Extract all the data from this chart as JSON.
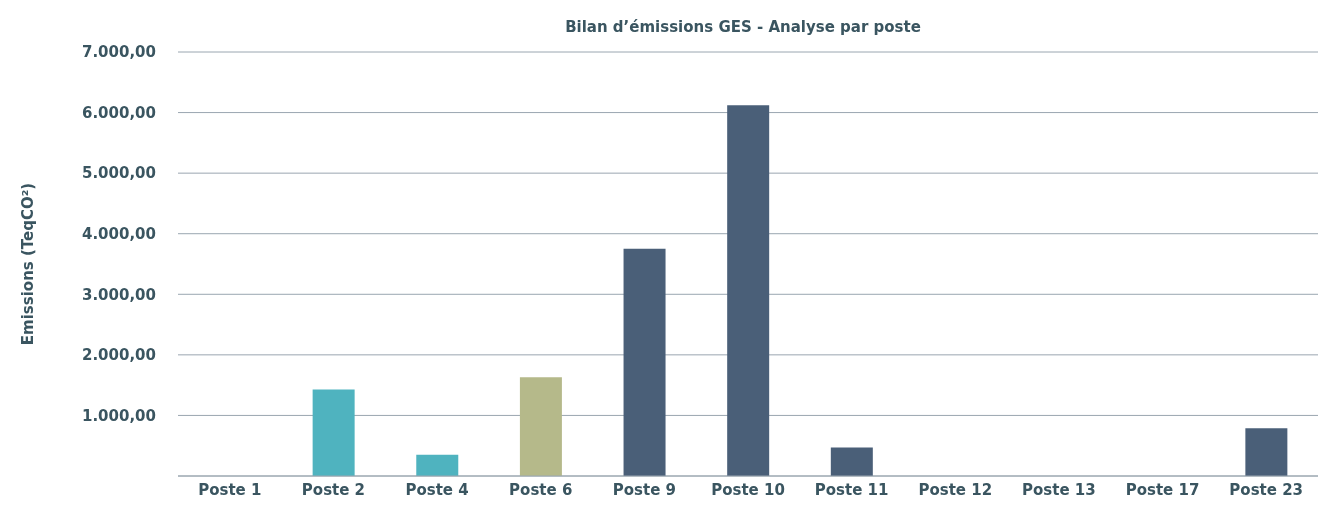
{
  "chart_data": {
    "type": "bar",
    "title": "Bilan d’émissions GES - Analyse par poste",
    "ylabel": "Emissions (TeqCO²)",
    "categories": [
      "Poste 1",
      "Poste 2",
      "Poste 4",
      "Poste 6",
      "Poste 9",
      "Poste 10",
      "Poste 11",
      "Poste 12",
      "Poste 13",
      "Poste 17",
      "Poste 23"
    ],
    "values": [
      0,
      1430,
      350,
      1630,
      3750,
      6120,
      470,
      0,
      0,
      0,
      790
    ],
    "colors": [
      "#4a5f78",
      "#4fb3bf",
      "#4fb3bf",
      "#b5b98a",
      "#4a5f78",
      "#4a5f78",
      "#4a5f78",
      "#4a5f78",
      "#4a5f78",
      "#4a5f78",
      "#4a5f78"
    ],
    "ylim": [
      0,
      7000
    ],
    "yticks": [
      {
        "value": 0,
        "label": null
      },
      {
        "value": 1000,
        "label": "1.000,00"
      },
      {
        "value": 2000,
        "label": "2.000,00"
      },
      {
        "value": 3000,
        "label": "3.000,00"
      },
      {
        "value": 4000,
        "label": "4.000,00"
      },
      {
        "value": 5000,
        "label": "5.000,00"
      },
      {
        "value": 6000,
        "label": "6.000,00"
      },
      {
        "value": 7000,
        "label": "7.000,00"
      }
    ],
    "grid": "y",
    "legend": false
  }
}
